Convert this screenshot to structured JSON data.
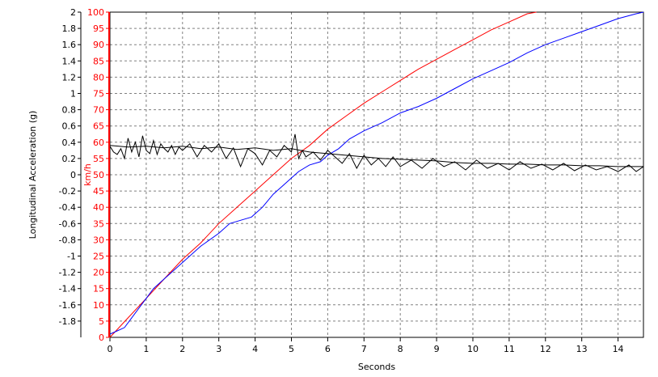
{
  "chart_data": {
    "type": "line",
    "title": "",
    "xlabel": "Seconds",
    "ylabel_left": "Longitudinal Acceleration (g)",
    "ylabel_right": "km/h",
    "xlim": [
      0,
      14.7
    ],
    "ylim_left": [
      -2,
      2
    ],
    "ylim_right": [
      0,
      100
    ],
    "grid": true,
    "axis_colors": {
      "left": "#000000",
      "right": "#ff0000"
    },
    "x_ticks": [
      "0",
      "1",
      "2",
      "3",
      "4",
      "5",
      "6",
      "7",
      "8",
      "9",
      "10",
      "11",
      "12",
      "13",
      "14"
    ],
    "y_left_ticks": [
      "2",
      "1.8",
      "1.6",
      "1.4",
      "1.2",
      "1",
      "0.8",
      "0.6",
      "0.4",
      "0.2",
      "0",
      "-0.2",
      "-0.4",
      "-0.6",
      "-0.8",
      "-1",
      "-1.2",
      "-1.4",
      "-1.6",
      "-1.8"
    ],
    "y_right_ticks": [
      "100",
      "95",
      "90",
      "85",
      "80",
      "75",
      "70",
      "65",
      "60",
      "55",
      "50",
      "45",
      "40",
      "35",
      "30",
      "25",
      "20",
      "15",
      "10",
      "5",
      "0"
    ],
    "series": [
      {
        "color": "#ff0000",
        "axis": "right",
        "x": [
          0,
          0.5,
          1,
          1.5,
          2,
          2.5,
          3,
          3.5,
          4,
          4.5,
          5,
          5.5,
          6,
          6.5,
          7,
          7.5,
          8,
          8.5,
          9,
          9.5,
          10,
          10.5,
          11,
          11.5,
          11.75
        ],
        "y": [
          0,
          6,
          12,
          18,
          24,
          29,
          35,
          40,
          45,
          50,
          55,
          59,
          64,
          68,
          72,
          75.5,
          79,
          82.5,
          85.5,
          88.5,
          91.5,
          94.5,
          97,
          99.5,
          100
        ]
      },
      {
        "color": "#0000ff",
        "axis": "right",
        "x": [
          0,
          0.2,
          0.4,
          0.6,
          0.8,
          1,
          1.2,
          1.5,
          2,
          2.5,
          3,
          3.3,
          3.6,
          3.9,
          4.2,
          4.5,
          4.8,
          5,
          5.2,
          5.5,
          5.8,
          6,
          6.3,
          6.6,
          7,
          7.5,
          8,
          8.5,
          9,
          9.5,
          10,
          10.5,
          11,
          11.5,
          12,
          12.5,
          13,
          13.5,
          14,
          14.5,
          14.7
        ],
        "y": [
          1,
          2,
          3,
          6,
          9,
          12,
          15,
          18,
          23,
          28,
          32,
          35,
          36,
          37,
          40,
          44,
          47,
          49,
          51,
          53,
          54,
          56,
          58,
          61,
          63.5,
          66,
          69,
          71,
          73.5,
          76.5,
          79.5,
          82,
          84.5,
          87.5,
          90,
          92,
          94,
          96,
          98,
          99.5,
          100
        ]
      },
      {
        "color": "#000000",
        "axis": "left",
        "x": [
          0,
          0.1,
          0.2,
          0.3,
          0.4,
          0.5,
          0.6,
          0.7,
          0.8,
          0.9,
          1,
          1.1,
          1.2,
          1.3,
          1.4,
          1.5,
          1.6,
          1.7,
          1.8,
          1.9,
          2,
          2.2,
          2.4,
          2.6,
          2.8,
          3,
          3.2,
          3.4,
          3.6,
          3.8,
          4,
          4.2,
          4.4,
          4.6,
          4.8,
          5,
          5.1,
          5.2,
          5.3,
          5.4,
          5.6,
          5.8,
          6,
          6.2,
          6.4,
          6.6,
          6.8,
          7,
          7.2,
          7.4,
          7.6,
          7.8,
          8,
          8.3,
          8.6,
          8.9,
          9.2,
          9.5,
          9.8,
          10.1,
          10.4,
          10.7,
          11,
          11.3,
          11.6,
          11.9,
          12.2,
          12.5,
          12.8,
          13.1,
          13.4,
          13.7,
          14,
          14.3,
          14.5,
          14.7
        ],
        "y": [
          0.35,
          0.28,
          0.25,
          0.32,
          0.2,
          0.45,
          0.28,
          0.4,
          0.22,
          0.48,
          0.3,
          0.26,
          0.42,
          0.25,
          0.38,
          0.32,
          0.28,
          0.36,
          0.25,
          0.34,
          0.3,
          0.38,
          0.22,
          0.36,
          0.28,
          0.38,
          0.2,
          0.33,
          0.1,
          0.32,
          0.26,
          0.12,
          0.3,
          0.22,
          0.36,
          0.28,
          0.5,
          0.2,
          0.3,
          0.22,
          0.28,
          0.18,
          0.3,
          0.22,
          0.14,
          0.26,
          0.08,
          0.24,
          0.12,
          0.2,
          0.1,
          0.22,
          0.1,
          0.18,
          0.08,
          0.2,
          0.1,
          0.16,
          0.06,
          0.18,
          0.08,
          0.14,
          0.06,
          0.16,
          0.08,
          0.13,
          0.06,
          0.14,
          0.05,
          0.12,
          0.06,
          0.1,
          0.04,
          0.12,
          0.04,
          0.1
        ]
      },
      {
        "color": "#000000",
        "axis": "left",
        "x": [
          0,
          0.5,
          1,
          1.5,
          2,
          2.5,
          3,
          3.5,
          4,
          4.5,
          5,
          5.5,
          6,
          6.5,
          7,
          7.5,
          8,
          8.5,
          9,
          9.5,
          10,
          10.5,
          11,
          11.5,
          12,
          12.5,
          13,
          13.5,
          14,
          14.5,
          14.7
        ],
        "y": [
          0.36,
          0.34,
          0.35,
          0.33,
          0.35,
          0.32,
          0.34,
          0.31,
          0.33,
          0.3,
          0.32,
          0.28,
          0.26,
          0.24,
          0.22,
          0.2,
          0.19,
          0.18,
          0.17,
          0.15,
          0.14,
          0.14,
          0.13,
          0.13,
          0.12,
          0.12,
          0.11,
          0.11,
          0.1,
          0.1,
          0.1
        ]
      }
    ]
  }
}
